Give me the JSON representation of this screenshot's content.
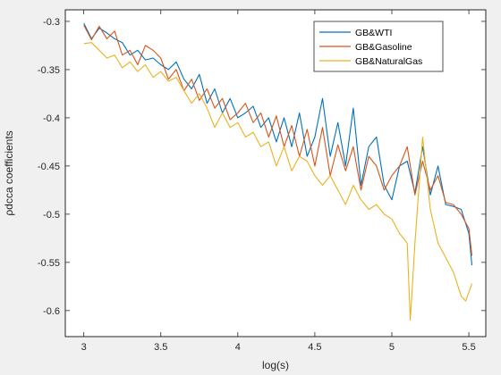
{
  "chart_data": {
    "type": "line",
    "title": "",
    "xlabel": "log(s)",
    "ylabel": "ρdcca coefficients",
    "xlim": [
      2.88,
      5.61
    ],
    "ylim": [
      -0.627,
      -0.288
    ],
    "xticks": [
      3,
      3.5,
      4,
      4.5,
      5,
      5.5
    ],
    "xtick_labels": [
      "3",
      "3.5",
      "4",
      "4.5",
      "5",
      "5.5"
    ],
    "yticks": [
      -0.6,
      -0.55,
      -0.5,
      -0.45,
      -0.4,
      -0.35,
      -0.3
    ],
    "ytick_labels": [
      "-0.6",
      "-0.55",
      "-0.5",
      "-0.45",
      "-0.4",
      "-0.35",
      "-0.3"
    ],
    "grid": false,
    "legend_position": "top-right",
    "series": [
      {
        "name": "GB&WTI",
        "color": "#0072BD",
        "x": [
          3.0,
          3.05,
          3.1,
          3.15,
          3.2,
          3.25,
          3.3,
          3.35,
          3.4,
          3.45,
          3.5,
          3.55,
          3.6,
          3.65,
          3.7,
          3.75,
          3.8,
          3.85,
          3.9,
          3.95,
          4.0,
          4.05,
          4.1,
          4.15,
          4.2,
          4.25,
          4.3,
          4.35,
          4.4,
          4.45,
          4.5,
          4.55,
          4.6,
          4.65,
          4.7,
          4.75,
          4.8,
          4.85,
          4.9,
          4.95,
          5.0,
          5.05,
          5.1,
          5.15,
          5.2,
          5.25,
          5.3,
          5.35,
          5.4,
          5.45,
          5.5,
          5.52
        ],
        "y": [
          -0.302,
          -0.318,
          -0.307,
          -0.312,
          -0.318,
          -0.322,
          -0.335,
          -0.33,
          -0.34,
          -0.338,
          -0.345,
          -0.35,
          -0.342,
          -0.36,
          -0.37,
          -0.355,
          -0.385,
          -0.37,
          -0.395,
          -0.38,
          -0.4,
          -0.395,
          -0.388,
          -0.41,
          -0.4,
          -0.425,
          -0.4,
          -0.43,
          -0.395,
          -0.44,
          -0.42,
          -0.38,
          -0.44,
          -0.405,
          -0.45,
          -0.39,
          -0.47,
          -0.43,
          -0.42,
          -0.47,
          -0.485,
          -0.45,
          -0.445,
          -0.478,
          -0.43,
          -0.48,
          -0.45,
          -0.49,
          -0.492,
          -0.495,
          -0.52,
          -0.553
        ]
      },
      {
        "name": "GB&Gasoline",
        "color": "#D95319",
        "x": [
          3.0,
          3.05,
          3.1,
          3.15,
          3.2,
          3.25,
          3.3,
          3.35,
          3.4,
          3.45,
          3.5,
          3.55,
          3.6,
          3.65,
          3.7,
          3.75,
          3.8,
          3.85,
          3.9,
          3.95,
          4.0,
          4.05,
          4.1,
          4.15,
          4.2,
          4.25,
          4.3,
          4.35,
          4.4,
          4.45,
          4.5,
          4.55,
          4.6,
          4.65,
          4.7,
          4.75,
          4.8,
          4.85,
          4.9,
          4.95,
          5.0,
          5.05,
          5.1,
          5.15,
          5.2,
          5.25,
          5.3,
          5.35,
          5.4,
          5.45,
          5.5,
          5.52
        ],
        "y": [
          -0.304,
          -0.319,
          -0.305,
          -0.318,
          -0.31,
          -0.335,
          -0.33,
          -0.345,
          -0.325,
          -0.33,
          -0.338,
          -0.36,
          -0.35,
          -0.372,
          -0.36,
          -0.382,
          -0.37,
          -0.39,
          -0.38,
          -0.402,
          -0.395,
          -0.385,
          -0.405,
          -0.395,
          -0.42,
          -0.398,
          -0.43,
          -0.408,
          -0.44,
          -0.412,
          -0.45,
          -0.41,
          -0.46,
          -0.428,
          -0.455,
          -0.43,
          -0.475,
          -0.44,
          -0.45,
          -0.475,
          -0.46,
          -0.45,
          -0.43,
          -0.48,
          -0.445,
          -0.475,
          -0.46,
          -0.488,
          -0.49,
          -0.5,
          -0.515,
          -0.543
        ]
      },
      {
        "name": "GB&NaturalGas",
        "color": "#EDB120",
        "x": [
          3.0,
          3.05,
          3.1,
          3.15,
          3.2,
          3.25,
          3.3,
          3.35,
          3.4,
          3.45,
          3.5,
          3.55,
          3.6,
          3.65,
          3.7,
          3.75,
          3.8,
          3.85,
          3.9,
          3.95,
          4.0,
          4.05,
          4.1,
          4.15,
          4.2,
          4.25,
          4.3,
          4.35,
          4.4,
          4.45,
          4.5,
          4.55,
          4.6,
          4.65,
          4.7,
          4.75,
          4.8,
          4.85,
          4.9,
          4.95,
          5.0,
          5.05,
          5.1,
          5.12,
          5.15,
          5.2,
          5.25,
          5.3,
          5.35,
          5.4,
          5.45,
          5.48,
          5.52
        ],
        "y": [
          -0.323,
          -0.322,
          -0.33,
          -0.338,
          -0.335,
          -0.348,
          -0.342,
          -0.352,
          -0.345,
          -0.358,
          -0.352,
          -0.362,
          -0.358,
          -0.372,
          -0.385,
          -0.375,
          -0.39,
          -0.41,
          -0.395,
          -0.41,
          -0.405,
          -0.42,
          -0.415,
          -0.43,
          -0.425,
          -0.45,
          -0.43,
          -0.455,
          -0.44,
          -0.445,
          -0.46,
          -0.47,
          -0.46,
          -0.475,
          -0.49,
          -0.47,
          -0.485,
          -0.495,
          -0.49,
          -0.5,
          -0.505,
          -0.52,
          -0.53,
          -0.61,
          -0.53,
          -0.42,
          -0.495,
          -0.53,
          -0.545,
          -0.56,
          -0.585,
          -0.59,
          -0.572
        ]
      }
    ]
  }
}
